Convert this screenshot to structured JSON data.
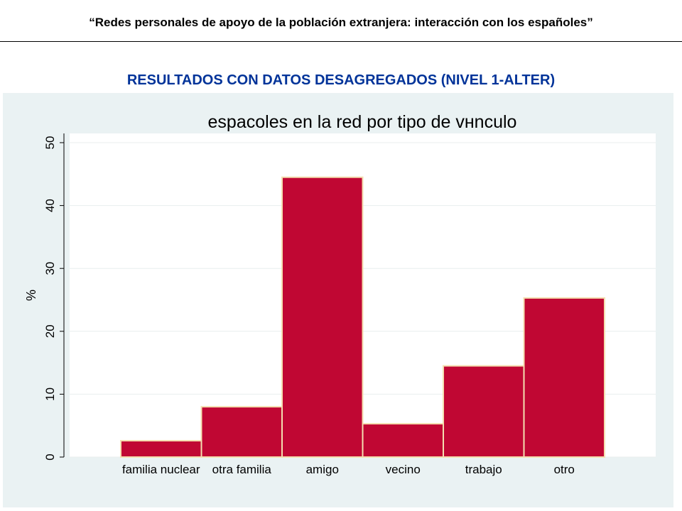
{
  "header": {
    "title": "“Redes personales de apoyo de la población extranjera: interacción con los españoles”"
  },
  "section": {
    "title": "RESULTADOS CON DATOS DESAGREGADOS (NIVEL 1-ALTER)"
  },
  "colors": {
    "title_blue": "#003399",
    "panel_bg": "#eaf2f3",
    "bar_fill": "#c00733",
    "bar_edge": "#f4dfb0"
  },
  "chart_data": {
    "type": "bar",
    "title": "espacoles en la red por tipo de vнnculo",
    "xlabel": "",
    "ylabel": "%",
    "categories": [
      "familia nuclear",
      "otra familia",
      "amigo",
      "vecino",
      "trabajo",
      "otro"
    ],
    "values": [
      2.6,
      8.0,
      44.5,
      5.3,
      14.5,
      25.3
    ],
    "ylim": [
      0,
      50
    ],
    "yticks": [
      0,
      10,
      20,
      30,
      40,
      50
    ],
    "grid": true,
    "legend": "none"
  }
}
